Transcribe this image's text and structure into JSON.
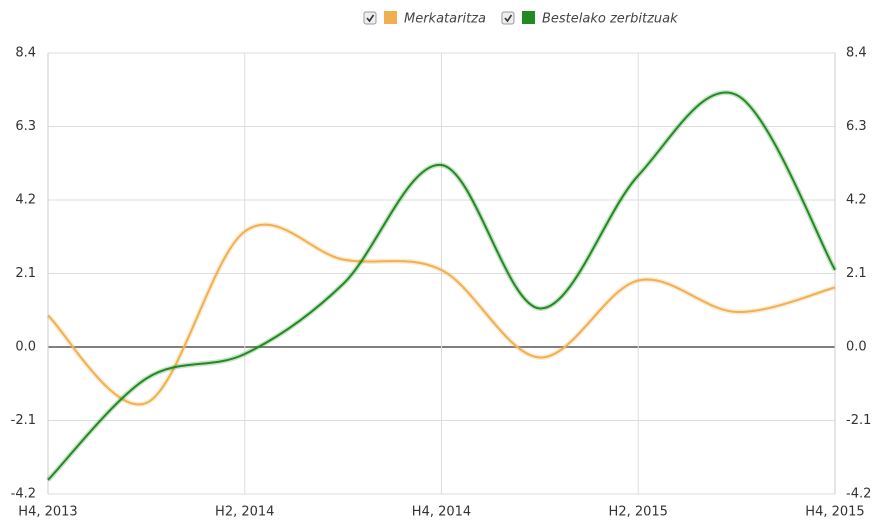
{
  "chart_data": {
    "type": "line",
    "categories": [
      "H4, 2013",
      null,
      "H2, 2014",
      null,
      "H4, 2014",
      null,
      "H2, 2015",
      null,
      "H4, 2015"
    ],
    "series": [
      {
        "name": "Merkataritza",
        "color": "#f0b050",
        "values": [
          0.9,
          -1.6,
          3.3,
          2.5,
          2.2,
          -0.3,
          1.9,
          1.0,
          1.7
        ]
      },
      {
        "name": "Bestelako zerbitzuak",
        "color": "#238a23",
        "values": [
          -3.8,
          -0.9,
          -0.2,
          1.8,
          5.2,
          1.1,
          4.9,
          7.2,
          2.2
        ]
      }
    ],
    "ylim": [
      -4.2,
      8.4
    ],
    "yticks": [
      8.4,
      6.3,
      4.2,
      2.1,
      {
        "value": 0,
        "label": "0.0"
      },
      -2.1,
      -4.2
    ],
    "grid": true,
    "legend": "top"
  }
}
